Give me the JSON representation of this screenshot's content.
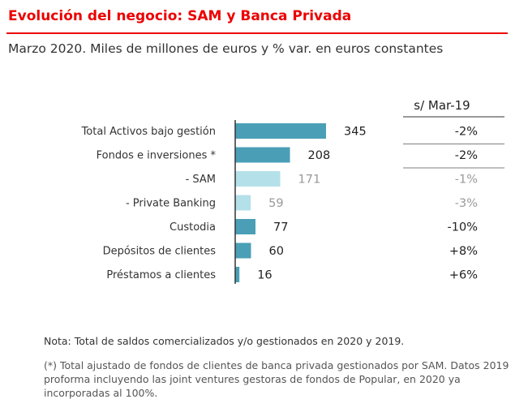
{
  "header": {
    "title": "Evolución del negocio: SAM y Banca Privada",
    "subtitle": "Marzo 2020. Miles de millones de euros y % var. en euros constantes"
  },
  "colors": {
    "accent": "#ec0000",
    "bar_primary": "#4a9fb6",
    "bar_secondary": "#b4e0e9",
    "label_secondary": "#999999"
  },
  "chart_data": {
    "type": "bar",
    "orientation": "horizontal",
    "title": "Evolución del negocio: SAM y Banca Privada",
    "subtitle": "Marzo 2020. Miles de millones de euros y % var. en euros constantes",
    "unit": "Miles de millones de euros",
    "categories": [
      "Total Activos bajo gestión",
      "Fondos e inversiones *",
      "- SAM",
      "- Private Banking",
      "Custodia",
      "Depósitos de clientes",
      "Préstamos a clientes"
    ],
    "values": [
      345,
      208,
      171,
      59,
      77,
      60,
      16
    ],
    "value_labels": [
      "345",
      "208",
      "171",
      "59",
      "77",
      "60",
      "16"
    ],
    "secondary": [
      false,
      false,
      true,
      true,
      false,
      false,
      false
    ],
    "change_header": "s/ Mar-19",
    "changes": [
      "-2%",
      "-2%",
      "-1%",
      "-3%",
      "-10%",
      "+8%",
      "+6%"
    ],
    "xlim": [
      0,
      345
    ]
  },
  "notes": {
    "note": "Nota: Total de saldos comercializados y/o gestionados en 2020 y 2019.",
    "footnote": "(*) Total ajustado de fondos de clientes de banca privada gestionados por SAM. Datos 2019 proforma incluyendo las joint ventures gestoras de fondos de Popular, en 2020 ya incorporadas al 100%."
  }
}
